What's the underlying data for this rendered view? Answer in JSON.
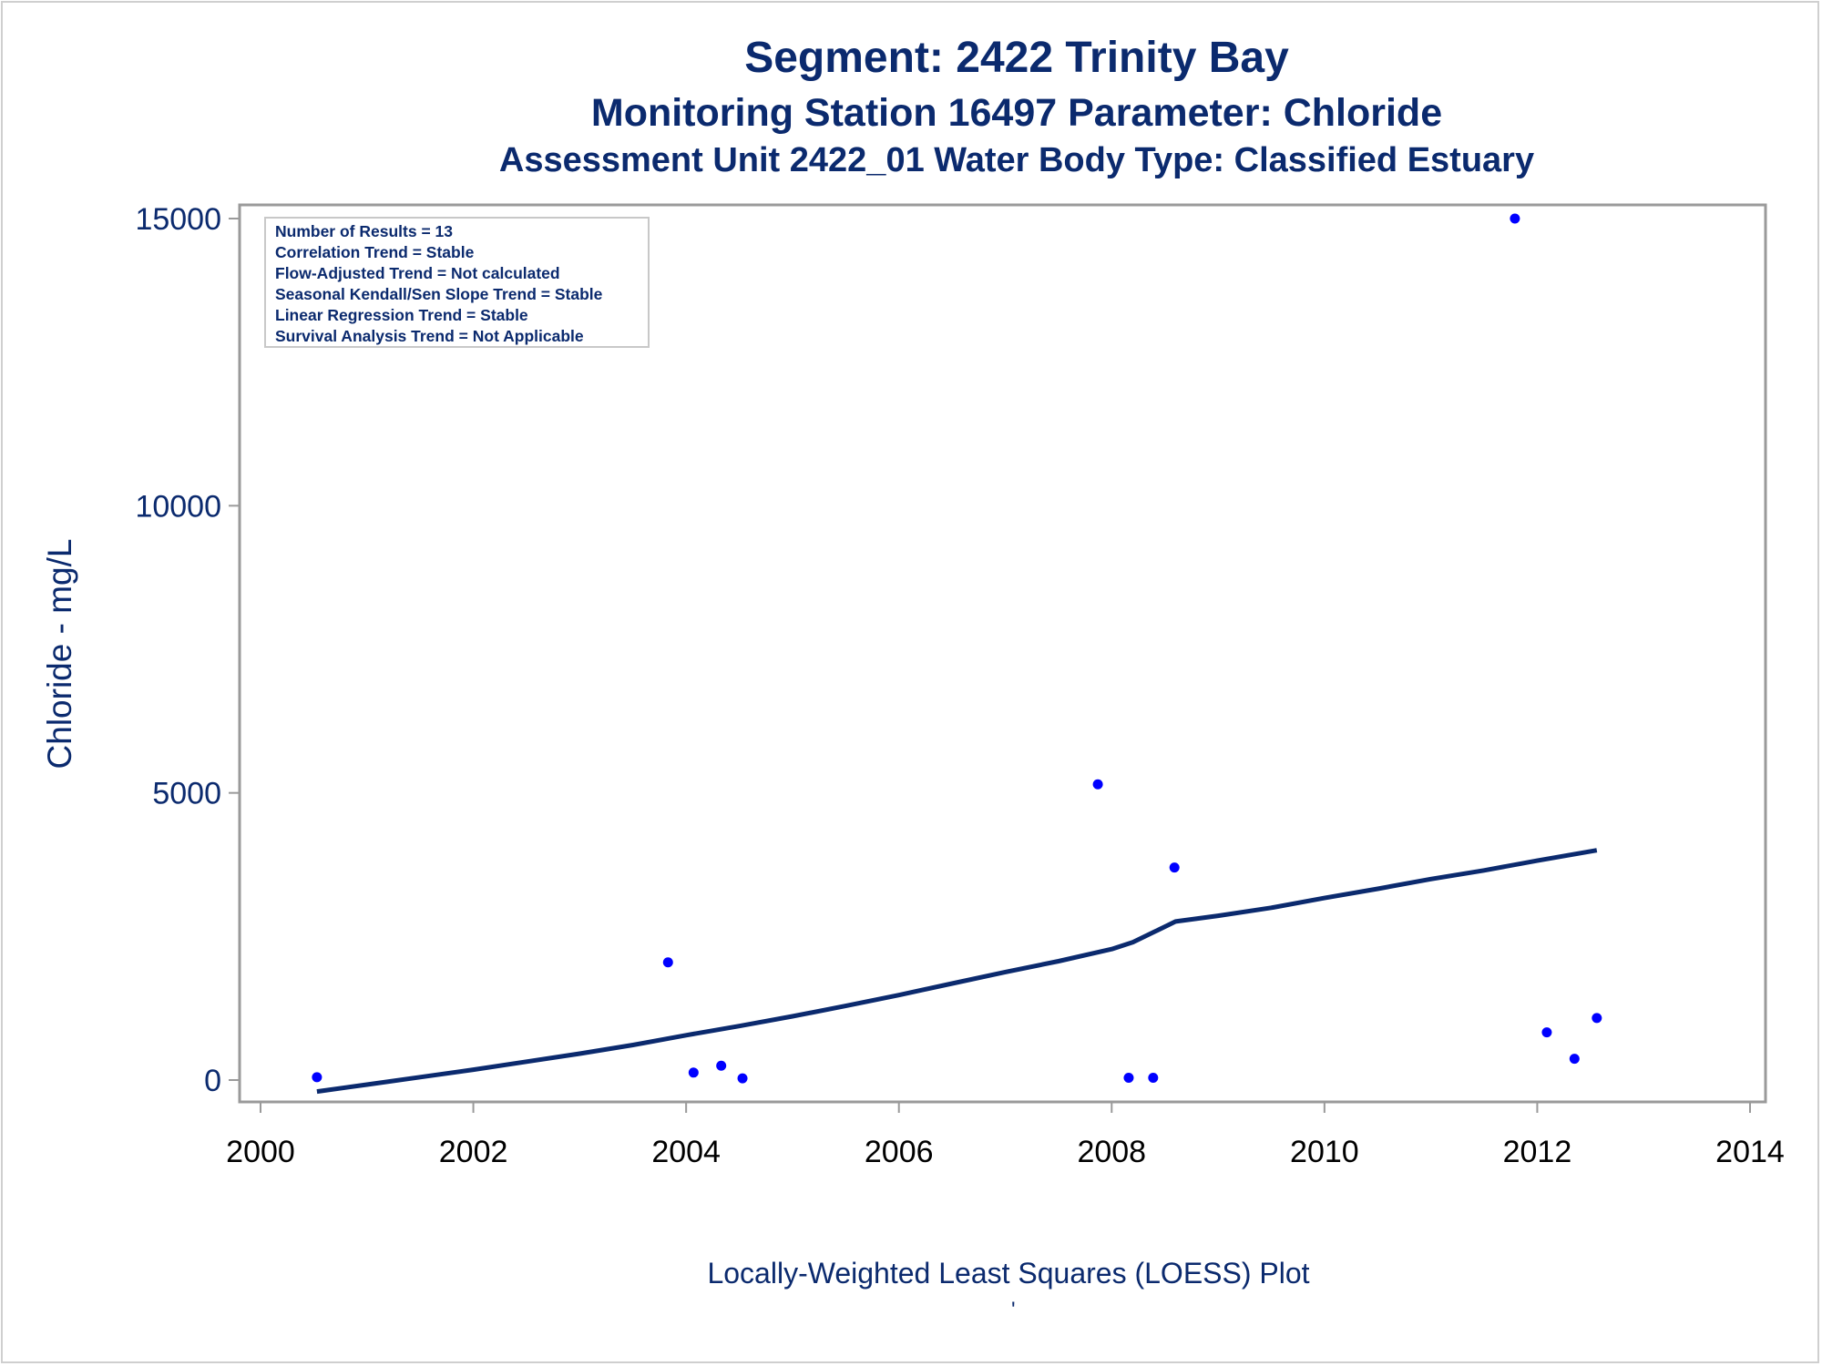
{
  "titles": {
    "line1": "Segment: 2422  Trinity Bay",
    "line2": "Monitoring Station 16497 Parameter: Chloride",
    "line3": "Assessment Unit 2422_01   Water Body Type: Classified Estuary"
  },
  "footnote": "Locally-Weighted Least Squares (LOESS) Plot",
  "footnote_mark": "'",
  "stats_box": [
    "Number of Results = 13",
    "Correlation Trend = Stable",
    "Flow-Adjusted Trend = Not calculated",
    "Seasonal Kendall/Sen Slope Trend = Stable",
    "Linear Regression Trend = Stable",
    "Survival Analysis Trend = Not Applicable"
  ],
  "colors": {
    "title_text": "#0b2a6e",
    "points": "#0000ff",
    "loess_line": "#0b2a6e",
    "axis_frame": "#9a9a9a",
    "x_tick_text": "#000000",
    "y_tick_text": "#0b2a6e"
  },
  "chart_data": {
    "type": "scatter",
    "title": "Segment: 2422  Trinity Bay",
    "xlabel": "",
    "ylabel": "Chloride - mg/L",
    "xlim": [
      2000,
      2014
    ],
    "ylim": [
      -400,
      15300
    ],
    "x_ticks": [
      2000,
      2002,
      2004,
      2006,
      2008,
      2010,
      2012,
      2014
    ],
    "y_ticks": [
      0,
      5000,
      10000,
      15000
    ],
    "grid": false,
    "series": [
      {
        "kind": "points",
        "x": [
          2000.53,
          2003.83,
          2004.07,
          2004.33,
          2004.53,
          2007.87,
          2008.16,
          2008.39,
          2008.59,
          2011.79,
          2012.09,
          2012.35,
          2012.56
        ],
        "y": [
          50,
          2050,
          130,
          250,
          30,
          5150,
          40,
          40,
          3700,
          15000,
          830,
          370,
          1080
        ]
      },
      {
        "kind": "loess",
        "x": [
          2000.53,
          2001.0,
          2001.5,
          2002.0,
          2002.5,
          2003.0,
          2003.5,
          2004.0,
          2004.5,
          2005.0,
          2005.5,
          2006.0,
          2006.5,
          2007.0,
          2007.5,
          2008.0,
          2008.2,
          2008.4,
          2008.6,
          2009.0,
          2009.5,
          2010.0,
          2010.5,
          2011.0,
          2011.5,
          2012.0,
          2012.56
        ],
        "y": [
          -200,
          -80,
          50,
          180,
          320,
          460,
          610,
          780,
          940,
          1110,
          1290,
          1480,
          1680,
          1880,
          2070,
          2280,
          2400,
          2580,
          2760,
          2860,
          3000,
          3170,
          3330,
          3500,
          3650,
          3820,
          4000
        ]
      }
    ]
  }
}
